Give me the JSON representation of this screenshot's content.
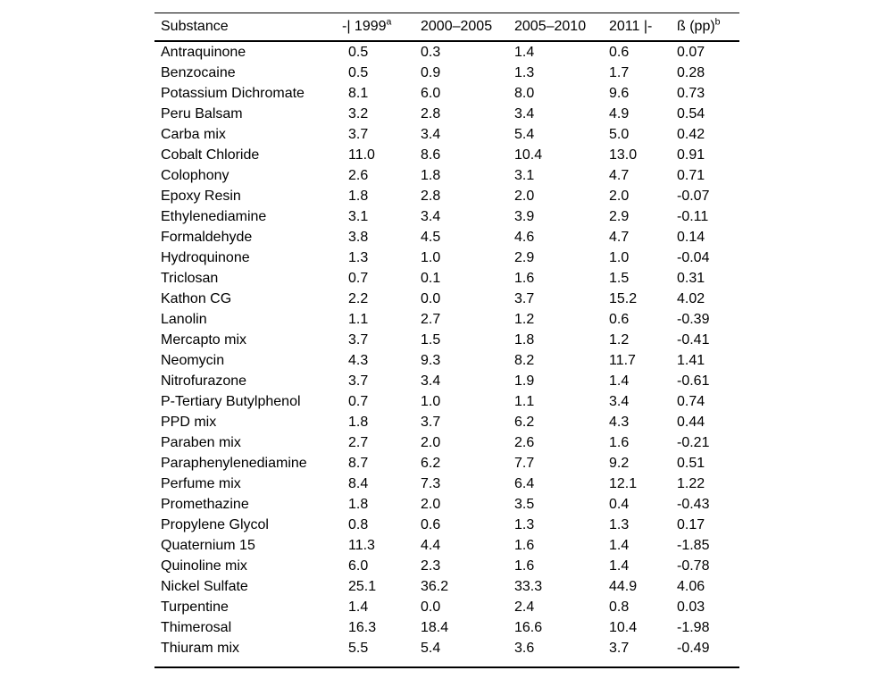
{
  "page": {
    "background_color": "#ffffff",
    "text_color": "#000000",
    "rule_color": "#000000"
  },
  "table": {
    "columns": [
      {
        "label": "Substance",
        "sup": ""
      },
      {
        "label": "-| 1999",
        "sup": "a"
      },
      {
        "label": "2000–2005",
        "sup": ""
      },
      {
        "label": "2005–2010",
        "sup": ""
      },
      {
        "label": "2011 |-",
        "sup": ""
      },
      {
        "label": "ß (pp)",
        "sup": "b"
      }
    ],
    "rows": [
      {
        "substance": "Antraquinone",
        "values": [
          "0.5",
          "0.3",
          "1.4",
          "0.6",
          "0.07"
        ]
      },
      {
        "substance": "Benzocaine",
        "values": [
          "0.5",
          "0.9",
          "1.3",
          "1.7",
          "0.28"
        ]
      },
      {
        "substance": "Potassium Dichromate",
        "values": [
          "8.1",
          "6.0",
          "8.0",
          "9.6",
          "0.73"
        ]
      },
      {
        "substance": "Peru Balsam",
        "values": [
          "3.2",
          "2.8",
          "3.4",
          "4.9",
          "0.54"
        ]
      },
      {
        "substance": "Carba mix",
        "values": [
          "3.7",
          "3.4",
          "5.4",
          "5.0",
          "0.42"
        ]
      },
      {
        "substance": "Cobalt Chloride",
        "values": [
          "11.0",
          "8.6",
          "10.4",
          "13.0",
          "0.91"
        ]
      },
      {
        "substance": "Colophony",
        "values": [
          "2.6",
          "1.8",
          "3.1",
          "4.7",
          "0.71"
        ]
      },
      {
        "substance": "Epoxy Resin",
        "values": [
          "1.8",
          "2.8",
          "2.0",
          "2.0",
          "-0.07"
        ]
      },
      {
        "substance": "Ethylenediamine",
        "values": [
          "3.1",
          "3.4",
          "3.9",
          "2.9",
          "-0.11"
        ]
      },
      {
        "substance": "Formaldehyde",
        "values": [
          "3.8",
          "4.5",
          "4.6",
          "4.7",
          "0.14"
        ]
      },
      {
        "substance": "Hydroquinone",
        "values": [
          "1.3",
          "1.0",
          "2.9",
          "1.0",
          "-0.04"
        ]
      },
      {
        "substance": "Triclosan",
        "values": [
          "0.7",
          "0.1",
          "1.6",
          "1.5",
          "0.31"
        ]
      },
      {
        "substance": "Kathon CG",
        "values": [
          "2.2",
          "0.0",
          "3.7",
          "15.2",
          "4.02"
        ]
      },
      {
        "substance": "Lanolin",
        "values": [
          "1.1",
          "2.7",
          "1.2",
          "0.6",
          "-0.39"
        ]
      },
      {
        "substance": "Mercapto mix",
        "values": [
          "3.7",
          "1.5",
          "1.8",
          "1.2",
          "-0.41"
        ]
      },
      {
        "substance": "Neomycin",
        "values": [
          "4.3",
          "9.3",
          "8.2",
          "11.7",
          "1.41"
        ]
      },
      {
        "substance": "Nitrofurazone",
        "values": [
          "3.7",
          "3.4",
          "1.9",
          "1.4",
          "-0.61"
        ]
      },
      {
        "substance": "P-Tertiary Butylphenol",
        "values": [
          "0.7",
          "1.0",
          "1.1",
          "3.4",
          "0.74"
        ]
      },
      {
        "substance": "PPD mix",
        "values": [
          "1.8",
          "3.7",
          "6.2",
          "4.3",
          "0.44"
        ]
      },
      {
        "substance": "Paraben mix",
        "values": [
          "2.7",
          "2.0",
          "2.6",
          "1.6",
          "-0.21"
        ]
      },
      {
        "substance": "Paraphenylenediamine",
        "values": [
          "8.7",
          "6.2",
          "7.7",
          "9.2",
          "0.51"
        ]
      },
      {
        "substance": "Perfume mix",
        "values": [
          "8.4",
          "7.3",
          "6.4",
          "12.1",
          "1.22"
        ]
      },
      {
        "substance": "Promethazine",
        "values": [
          "1.8",
          "2.0",
          "3.5",
          "0.4",
          "-0.43"
        ]
      },
      {
        "substance": "Propylene Glycol",
        "values": [
          "0.8",
          "0.6",
          "1.3",
          "1.3",
          "0.17"
        ]
      },
      {
        "substance": "Quaternium 15",
        "values": [
          "11.3",
          "4.4",
          "1.6",
          "1.4",
          "-1.85"
        ]
      },
      {
        "substance": "Quinoline mix",
        "values": [
          "6.0",
          "2.3",
          "1.6",
          "1.4",
          "-0.78"
        ]
      },
      {
        "substance": "Nickel Sulfate",
        "values": [
          "25.1",
          "36.2",
          "33.3",
          "44.9",
          "4.06"
        ]
      },
      {
        "substance": "Turpentine",
        "values": [
          "1.4",
          "0.0",
          "2.4",
          "0.8",
          "0.03"
        ]
      },
      {
        "substance": "Thimerosal",
        "values": [
          "16.3",
          "18.4",
          "16.6",
          "10.4",
          "-1.98"
        ]
      },
      {
        "substance": "Thiuram mix",
        "values": [
          "5.5",
          "5.4",
          "3.6",
          "3.7",
          "-0.49"
        ]
      }
    ]
  }
}
